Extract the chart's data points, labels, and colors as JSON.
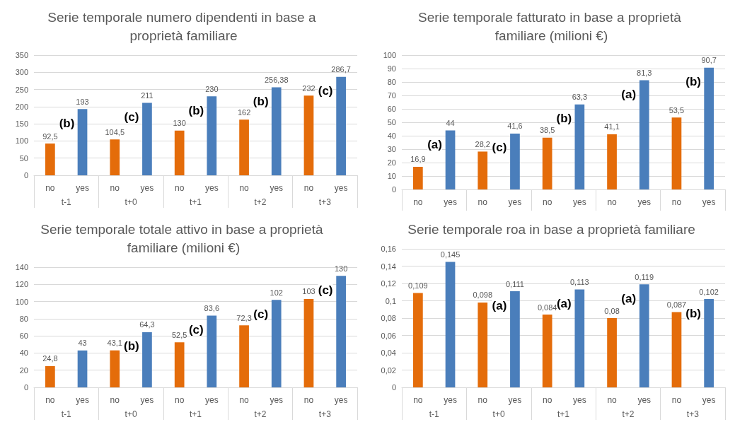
{
  "chart_data": [
    {
      "type": "bar",
      "title": "Serie temporale numero dipendenti in base a proprietà familiare",
      "categories": [
        "t-1",
        "t+0",
        "t+1",
        "t+2",
        "t+3"
      ],
      "series": [
        {
          "name": "no",
          "color": "#e46c0a",
          "values": [
            92.5,
            104.5,
            130,
            162,
            232
          ],
          "value_labels": [
            "92,5",
            "104,5",
            "130",
            "162",
            "232"
          ]
        },
        {
          "name": "yes",
          "color": "#4a7ebb",
          "values": [
            193,
            211,
            230,
            256.38,
            286.7
          ],
          "value_labels": [
            "193",
            "211",
            "230",
            "256,38",
            "286,7"
          ]
        }
      ],
      "ylim": [
        0,
        350
      ],
      "yticks": [
        0,
        50,
        100,
        150,
        200,
        250,
        300,
        350
      ],
      "grid": "y",
      "annotations": [
        "(b)",
        "(c)",
        "(b)",
        "(b)",
        "(c)"
      ]
    },
    {
      "type": "bar",
      "title": "Serie temporale fatturato in base a proprietà familiare (milioni €)",
      "categories": [
        "no",
        "yes",
        "no",
        "yes",
        "no",
        "yes",
        "no",
        "yes",
        "no",
        "yes"
      ],
      "values": [
        16.9,
        44,
        28.2,
        41.6,
        38.5,
        63.3,
        41.1,
        81.3,
        53.5,
        90.7
      ],
      "colors": [
        "#e46c0a",
        "#4a7ebb",
        "#e46c0a",
        "#4a7ebb",
        "#e46c0a",
        "#4a7ebb",
        "#e46c0a",
        "#4a7ebb",
        "#e46c0a",
        "#4a7ebb"
      ],
      "value_labels": [
        "16,9",
        "44",
        "28,2",
        "41,6",
        "38,5",
        "63,3",
        "41,1",
        "81,3",
        "53,5",
        "90,7"
      ],
      "ylim": [
        0,
        100
      ],
      "yticks": [
        0,
        10,
        20,
        30,
        40,
        50,
        60,
        70,
        80,
        90,
        100
      ],
      "grid": "y",
      "annotations": [
        "(a)",
        "(c)",
        "(b)",
        "(a)",
        "(b)"
      ]
    },
    {
      "type": "bar",
      "title": "Serie temporale totale attivo in base a proprietà familiare (milioni €)",
      "categories": [
        "t-1",
        "t+0",
        "t+1",
        "t+2",
        "t+3"
      ],
      "series": [
        {
          "name": "no",
          "color": "#e46c0a",
          "values": [
            24.8,
            43.1,
            52.5,
            72.3,
            103
          ],
          "value_labels": [
            "24,8",
            "43,1",
            "52,5",
            "72,3",
            "103"
          ]
        },
        {
          "name": "yes",
          "color": "#4a7ebb",
          "values": [
            43,
            64.3,
            83.6,
            102,
            130
          ],
          "value_labels": [
            "43",
            "64,3",
            "83,6",
            "102",
            "130"
          ]
        }
      ],
      "ylim": [
        0,
        140
      ],
      "yticks": [
        0,
        20,
        40,
        60,
        80,
        100,
        120,
        140
      ],
      "grid": "y",
      "annotations": [
        "(b)",
        "(c)",
        "(c)",
        "(c)"
      ]
    },
    {
      "type": "bar",
      "title": "Serie temporale roa in base a proprietà familiare",
      "categories": [
        "t-1",
        "t+0",
        "t+1",
        "t+2",
        "t+3"
      ],
      "series": [
        {
          "name": "no",
          "color": "#e46c0a",
          "values": [
            0.109,
            0.098,
            0.084,
            0.08,
            0.087
          ],
          "value_labels": [
            "0,109",
            "0,098",
            "0,084",
            "0,08",
            "0,087"
          ]
        },
        {
          "name": "yes",
          "color": "#4a7ebb",
          "values": [
            0.145,
            0.111,
            0.113,
            0.119,
            0.102
          ],
          "value_labels": [
            "0,145",
            "0,111",
            "0,113",
            "0,119",
            "0,102"
          ]
        }
      ],
      "ylim": [
        0,
        0.16
      ],
      "yticks": [
        0,
        {
          "value": 0.02,
          "label": "0,02"
        },
        {
          "value": 0.04,
          "label": "0,04"
        },
        {
          "value": 0.06,
          "label": "0,06"
        },
        {
          "value": 0.08,
          "label": "0,08"
        },
        {
          "value": 0.1,
          "label": "0,1"
        },
        {
          "value": 0.12,
          "label": "0,12"
        },
        {
          "value": 0.14,
          "label": "0,14"
        },
        {
          "value": 0.16,
          "label": "0,16"
        }
      ],
      "grid": "y",
      "annotations": [
        "(a)",
        "(a)",
        "(a)",
        "(b)"
      ]
    }
  ]
}
